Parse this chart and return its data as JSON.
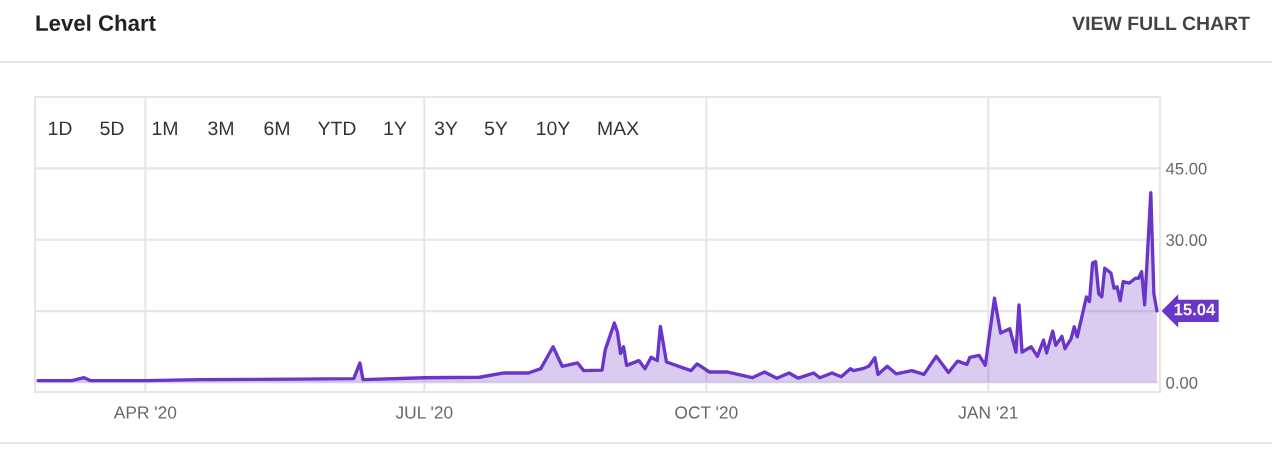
{
  "chart_data": {
    "type": "area",
    "title": "Level Chart",
    "x": [
      "2020-02-26",
      "2020-03-08",
      "2020-03-12",
      "2020-03-14",
      "2020-04-01",
      "2020-04-19",
      "2020-05-21",
      "2020-06-08",
      "2020-06-10",
      "2020-06-11",
      "2020-07-01",
      "2020-07-19",
      "2020-07-27",
      "2020-08-04",
      "2020-08-08",
      "2020-08-12",
      "2020-08-15",
      "2020-08-20",
      "2020-08-22",
      "2020-08-28",
      "2020-08-29",
      "2020-09-01",
      "2020-09-02",
      "2020-09-03",
      "2020-09-04",
      "2020-09-05",
      "2020-09-09",
      "2020-09-11",
      "2020-09-13",
      "2020-09-15",
      "2020-09-16",
      "2020-09-18",
      "2020-09-26",
      "2020-09-28",
      "2020-10-02",
      "2020-10-08",
      "2020-10-16",
      "2020-10-20",
      "2020-10-24",
      "2020-10-28",
      "2020-10-31",
      "2020-11-05",
      "2020-11-07",
      "2020-11-11",
      "2020-11-14",
      "2020-11-17",
      "2020-11-18",
      "2020-11-21",
      "2020-11-23",
      "2020-11-25",
      "2020-11-26",
      "2020-11-29",
      "2020-12-02",
      "2020-12-07",
      "2020-12-11",
      "2020-12-15",
      "2020-12-19",
      "2020-12-22",
      "2020-12-25",
      "2020-12-26",
      "2020-12-29",
      "2020-12-31",
      "2021-01-03",
      "2021-01-05",
      "2021-01-08",
      "2021-01-10",
      "2021-01-11",
      "2021-01-12",
      "2021-01-15",
      "2021-01-17",
      "2021-01-19",
      "2021-01-20",
      "2021-01-22",
      "2021-01-23",
      "2021-01-25",
      "2021-01-26",
      "2021-01-28",
      "2021-01-29",
      "2021-01-30",
      "2021-02-02",
      "2021-02-03",
      "2021-02-04",
      "2021-02-05",
      "2021-02-06",
      "2021-02-07",
      "2021-02-08",
      "2021-02-10",
      "2021-02-11",
      "2021-02-12",
      "2021-02-13",
      "2021-02-14",
      "2021-02-16",
      "2021-02-18",
      "2021-02-19",
      "2021-02-20",
      "2021-02-21",
      "2021-02-23",
      "2021-02-24",
      "2021-02-25"
    ],
    "series": [
      {
        "color": "#6a35c9",
        "values": [
          0.4,
          0.4,
          1.0,
          0.4,
          0.4,
          0.6,
          0.7,
          0.8,
          4.1,
          0.6,
          1.0,
          1.1,
          2.0,
          2.0,
          2.9,
          7.5,
          3.4,
          4.1,
          2.5,
          2.6,
          6.8,
          12.5,
          10.6,
          6.1,
          7.5,
          3.6,
          4.6,
          2.9,
          5.3,
          4.6,
          11.8,
          4.3,
          2.5,
          3.9,
          2.2,
          2.2,
          1.0,
          2.2,
          0.9,
          2.0,
          0.9,
          2.0,
          1.0,
          2.0,
          1.2,
          2.9,
          2.5,
          2.9,
          3.4,
          5.2,
          1.7,
          3.4,
          1.8,
          2.5,
          1.7,
          5.5,
          2.1,
          4.5,
          3.8,
          5.3,
          5.7,
          3.6,
          17.7,
          10.4,
          11.3,
          6.4,
          16.3,
          6.4,
          7.5,
          5.5,
          8.9,
          6.2,
          10.8,
          7.8,
          9.7,
          7.1,
          9.2,
          11.7,
          9.6,
          18.0,
          17.0,
          25.1,
          25.4,
          18.7,
          18.0,
          24.0,
          23.0,
          19.8,
          20.1,
          17.2,
          21.2,
          20.9,
          21.9,
          21.9,
          23.3,
          16.3,
          39.9,
          18.7,
          15.04
        ]
      }
    ],
    "xlim": [
      "2020-02-25",
      "2021-02-26"
    ],
    "xticks": [
      {
        "value": "2020-04-01",
        "label": "APR '20"
      },
      {
        "value": "2020-07-01",
        "label": "JUL '20"
      },
      {
        "value": "2020-10-01",
        "label": "OCT '20"
      },
      {
        "value": "2021-01-01",
        "label": "JAN '21"
      }
    ],
    "ylim": [
      -2,
      60
    ],
    "yticks": [
      {
        "value": 0,
        "label": "0.00"
      },
      {
        "value": 15,
        "label": null
      },
      {
        "value": 30,
        "label": "30.00"
      },
      {
        "value": 45,
        "label": "45.00"
      }
    ],
    "grid": true,
    "annotations": [
      "VIEW FULL CHART",
      "1D",
      "5D",
      "1M",
      "3M",
      "6M",
      "YTD",
      "1Y",
      "3Y",
      "5Y",
      "10Y",
      "MAX",
      {
        "text": "15.04",
        "x": "2021-02-25",
        "y": 15.04
      }
    ]
  }
}
